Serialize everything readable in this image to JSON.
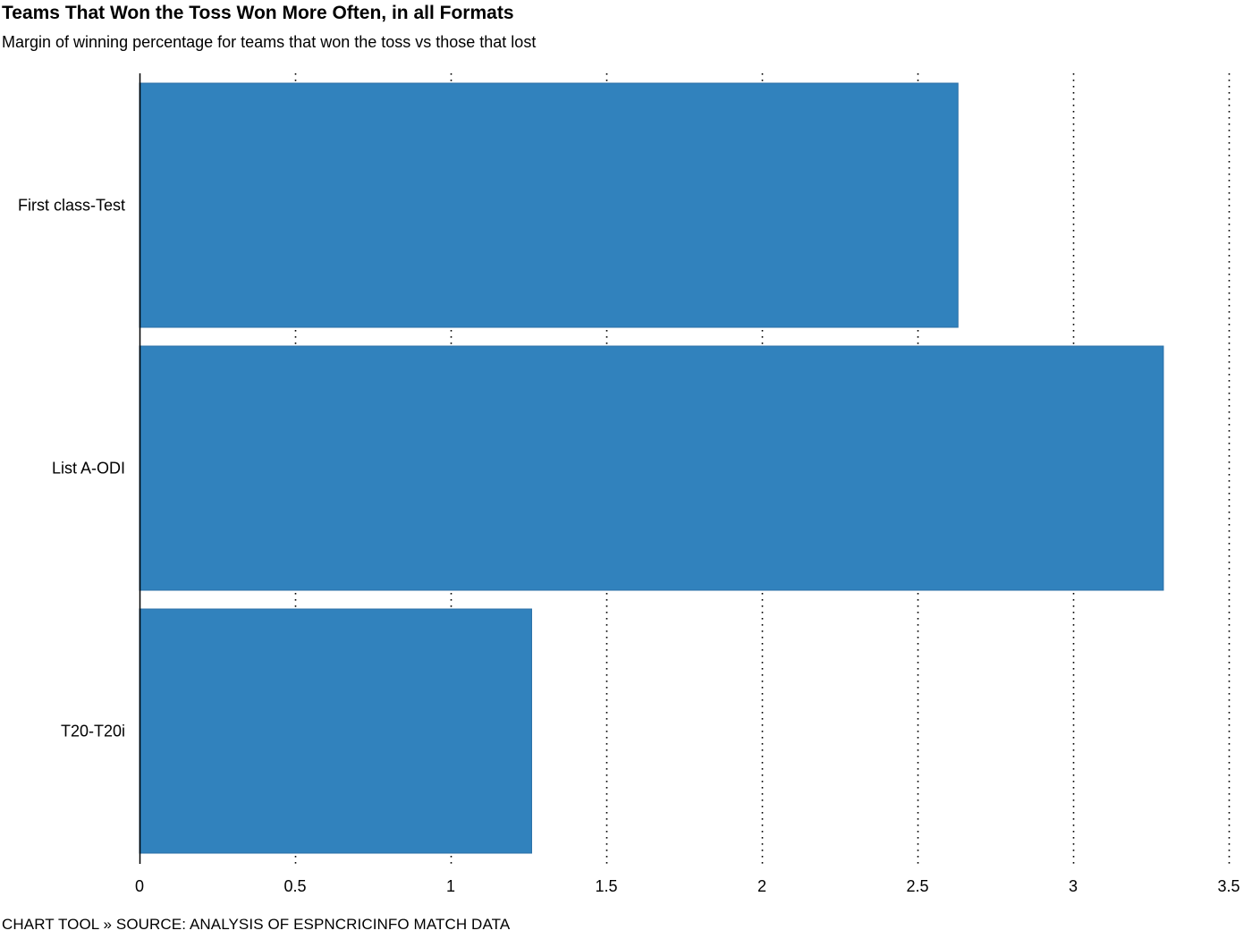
{
  "title": "Teams That Won the Toss Won More Often, in all Formats",
  "subtitle": "Margin of winning percentage for teams that won the toss vs those that lost",
  "footer": "CHART TOOL » SOURCE: ANALYSIS OF ESPNCRICINFO MATCH DATA",
  "colors": {
    "bar": "#3182bd",
    "bar_stroke": "#2a6fa6",
    "grid": "#000000",
    "axis": "#000000"
  },
  "chart_data": {
    "type": "bar",
    "orientation": "horizontal",
    "categories": [
      "First class-Test",
      "List A-ODI",
      "T20-T20i"
    ],
    "values": [
      2.63,
      3.29,
      1.26
    ],
    "xlim": [
      0,
      3.5
    ],
    "ticks": [
      0,
      0.5,
      1,
      1.5,
      2,
      2.5,
      3,
      3.5
    ],
    "tick_labels": [
      "0",
      "0.5",
      "1",
      "1.5",
      "2",
      "2.5",
      "3",
      "3.5"
    ],
    "grid": "vertical-dotted",
    "legend": "none"
  }
}
